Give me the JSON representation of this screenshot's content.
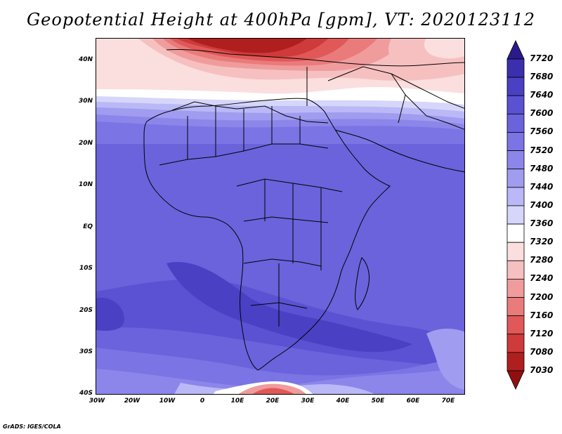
{
  "title": "Geopotential Height at 400hPa [gpm], VT: 2020123112",
  "credit": "GrADS: IGES/COLA",
  "lat_labels": [
    "40N",
    "30N",
    "20N",
    "10N",
    "EQ",
    "10S",
    "20S",
    "30S",
    "40S"
  ],
  "lon_labels": [
    "30W",
    "20W",
    "10W",
    "0",
    "10E",
    "20E",
    "30E",
    "40E",
    "50E",
    "60E",
    "70E"
  ],
  "colorbar": {
    "levels": [
      7720,
      7680,
      7640,
      7600,
      7560,
      7520,
      7480,
      7440,
      7400,
      7360,
      7320,
      7280,
      7240,
      7200,
      7160,
      7120,
      7080,
      7030
    ],
    "colors": [
      "#2b1a8c",
      "#3b2fae",
      "#4a40c4",
      "#5a52d2",
      "#6a63dc",
      "#7a74e4",
      "#8c86ea",
      "#a09cf0",
      "#bab8f6",
      "#d6d6fa",
      "#ffffff",
      "#fbdede",
      "#f6c0c0",
      "#f09c9c",
      "#ea7b7b",
      "#e05858",
      "#cf3a3a",
      "#b01f1f",
      "#901010"
    ]
  },
  "field": {
    "variable": "Geopotential Height",
    "level": "400hPa",
    "units": "gpm",
    "valid_time": "2020123112",
    "domain": {
      "lon": [
        -30,
        75
      ],
      "lat": [
        -40,
        45
      ]
    }
  }
}
